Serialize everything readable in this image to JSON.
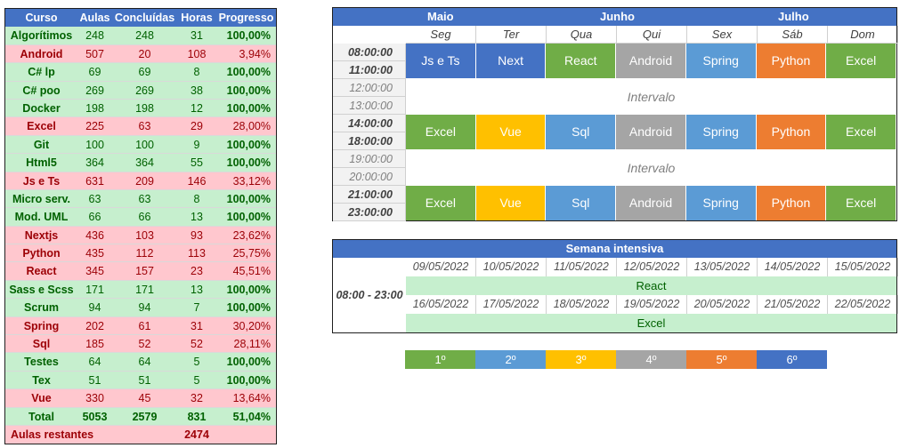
{
  "courses": {
    "header": {
      "name": "Curso",
      "aulas": "Aulas",
      "concluidas": "Concluídas",
      "horas": "Horas",
      "progresso": "Progresso"
    },
    "rows": [
      {
        "name": "Algorítimos",
        "aulas": "248",
        "concluidas": "248",
        "horas": "31",
        "progresso": "100,00%",
        "status": "done"
      },
      {
        "name": "Android",
        "aulas": "507",
        "concluidas": "20",
        "horas": "108",
        "progresso": "3,94%",
        "status": "pend"
      },
      {
        "name": "C# lp",
        "aulas": "69",
        "concluidas": "69",
        "horas": "8",
        "progresso": "100,00%",
        "status": "done"
      },
      {
        "name": "C# poo",
        "aulas": "269",
        "concluidas": "269",
        "horas": "38",
        "progresso": "100,00%",
        "status": "done"
      },
      {
        "name": "Docker",
        "aulas": "198",
        "concluidas": "198",
        "horas": "12",
        "progresso": "100,00%",
        "status": "done"
      },
      {
        "name": "Excel",
        "aulas": "225",
        "concluidas": "63",
        "horas": "29",
        "progresso": "28,00%",
        "status": "pend"
      },
      {
        "name": "Git",
        "aulas": "100",
        "concluidas": "100",
        "horas": "9",
        "progresso": "100,00%",
        "status": "done"
      },
      {
        "name": "Html5",
        "aulas": "364",
        "concluidas": "364",
        "horas": "55",
        "progresso": "100,00%",
        "status": "done"
      },
      {
        "name": "Js e Ts",
        "aulas": "631",
        "concluidas": "209",
        "horas": "146",
        "progresso": "33,12%",
        "status": "pend"
      },
      {
        "name": "Micro serv.",
        "aulas": "63",
        "concluidas": "63",
        "horas": "8",
        "progresso": "100,00%",
        "status": "done"
      },
      {
        "name": "Mod. UML",
        "aulas": "66",
        "concluidas": "66",
        "horas": "13",
        "progresso": "100,00%",
        "status": "done"
      },
      {
        "name": "Nextjs",
        "aulas": "436",
        "concluidas": "103",
        "horas": "93",
        "progresso": "23,62%",
        "status": "pend"
      },
      {
        "name": "Python",
        "aulas": "435",
        "concluidas": "112",
        "horas": "113",
        "progresso": "25,75%",
        "status": "pend"
      },
      {
        "name": "React",
        "aulas": "345",
        "concluidas": "157",
        "horas": "23",
        "progresso": "45,51%",
        "status": "pend"
      },
      {
        "name": "Sass e Scss",
        "aulas": "171",
        "concluidas": "171",
        "horas": "13",
        "progresso": "100,00%",
        "status": "done"
      },
      {
        "name": "Scrum",
        "aulas": "94",
        "concluidas": "94",
        "horas": "7",
        "progresso": "100,00%",
        "status": "done"
      },
      {
        "name": "Spring",
        "aulas": "202",
        "concluidas": "61",
        "horas": "31",
        "progresso": "30,20%",
        "status": "pend"
      },
      {
        "name": "Sql",
        "aulas": "185",
        "concluidas": "52",
        "horas": "52",
        "progresso": "28,11%",
        "status": "pend"
      },
      {
        "name": "Testes",
        "aulas": "64",
        "concluidas": "64",
        "horas": "5",
        "progresso": "100,00%",
        "status": "done"
      },
      {
        "name": "Tex",
        "aulas": "51",
        "concluidas": "51",
        "horas": "5",
        "progresso": "100,00%",
        "status": "done"
      },
      {
        "name": "Vue",
        "aulas": "330",
        "concluidas": "45",
        "horas": "32",
        "progresso": "13,64%",
        "status": "pend"
      }
    ],
    "total": {
      "name": "Total",
      "aulas": "5053",
      "concluidas": "2579",
      "horas": "831",
      "progresso": "51,04%"
    },
    "remaining": {
      "label": "Aulas restantes",
      "value": "2474"
    }
  },
  "schedule": {
    "months": [
      "Maio",
      "Junho",
      "Julho"
    ],
    "days": [
      "Seg",
      "Ter",
      "Qua",
      "Qui",
      "Sex",
      "Sáb",
      "Dom"
    ],
    "times": [
      "08:00:00",
      "11:00:00",
      "12:00:00",
      "13:00:00",
      "14:00:00",
      "18:00:00",
      "19:00:00",
      "20:00:00",
      "21:00:00",
      "23:00:00"
    ],
    "slots": [
      [
        "Js e Ts",
        "Next",
        "React",
        "Android",
        "Spring",
        "Python",
        "Excel"
      ],
      [
        "Excel",
        "Vue",
        "Sql",
        "Android",
        "Spring",
        "Python",
        "Excel"
      ],
      [
        "Excel",
        "Vue",
        "Sql",
        "Android",
        "Spring",
        "Python",
        "Excel"
      ]
    ],
    "slot_colors": [
      [
        "#4472c4",
        "#4472c4",
        "#70ad47",
        "#a5a5a5",
        "#5b9bd5",
        "#ed7d31",
        "#70ad47"
      ],
      [
        "#70ad47",
        "#ffc000",
        "#5b9bd5",
        "#a5a5a5",
        "#5b9bd5",
        "#ed7d31",
        "#70ad47"
      ],
      [
        "#70ad47",
        "#ffc000",
        "#5b9bd5",
        "#a5a5a5",
        "#5b9bd5",
        "#ed7d31",
        "#70ad47"
      ]
    ],
    "interval_label": "Intervalo"
  },
  "intensive": {
    "title": "Semana intensiva",
    "time_range": "08:00 - 23:00",
    "week1_dates": [
      "09/05/2022",
      "10/05/2022",
      "11/05/2022",
      "12/05/2022",
      "13/05/2022",
      "14/05/2022",
      "15/05/2022"
    ],
    "week1_course": "React",
    "week2_dates": [
      "16/05/2022",
      "17/05/2022",
      "18/05/2022",
      "19/05/2022",
      "20/05/2022",
      "21/05/2022",
      "22/05/2022"
    ],
    "week2_course": "Excel"
  },
  "legend": [
    {
      "label": "1º",
      "color": "#70ad47"
    },
    {
      "label": "2º",
      "color": "#5b9bd5"
    },
    {
      "label": "3º",
      "color": "#ffc000"
    },
    {
      "label": "4º",
      "color": "#a5a5a5"
    },
    {
      "label": "5º",
      "color": "#ed7d31"
    },
    {
      "label": "6º",
      "color": "#4472c4"
    }
  ],
  "colors": {
    "header_blue": "#4472c4",
    "done_bg": "#c6efce",
    "done_text": "#006100",
    "pending_bg": "#ffc7ce",
    "pending_text": "#9c0006"
  }
}
